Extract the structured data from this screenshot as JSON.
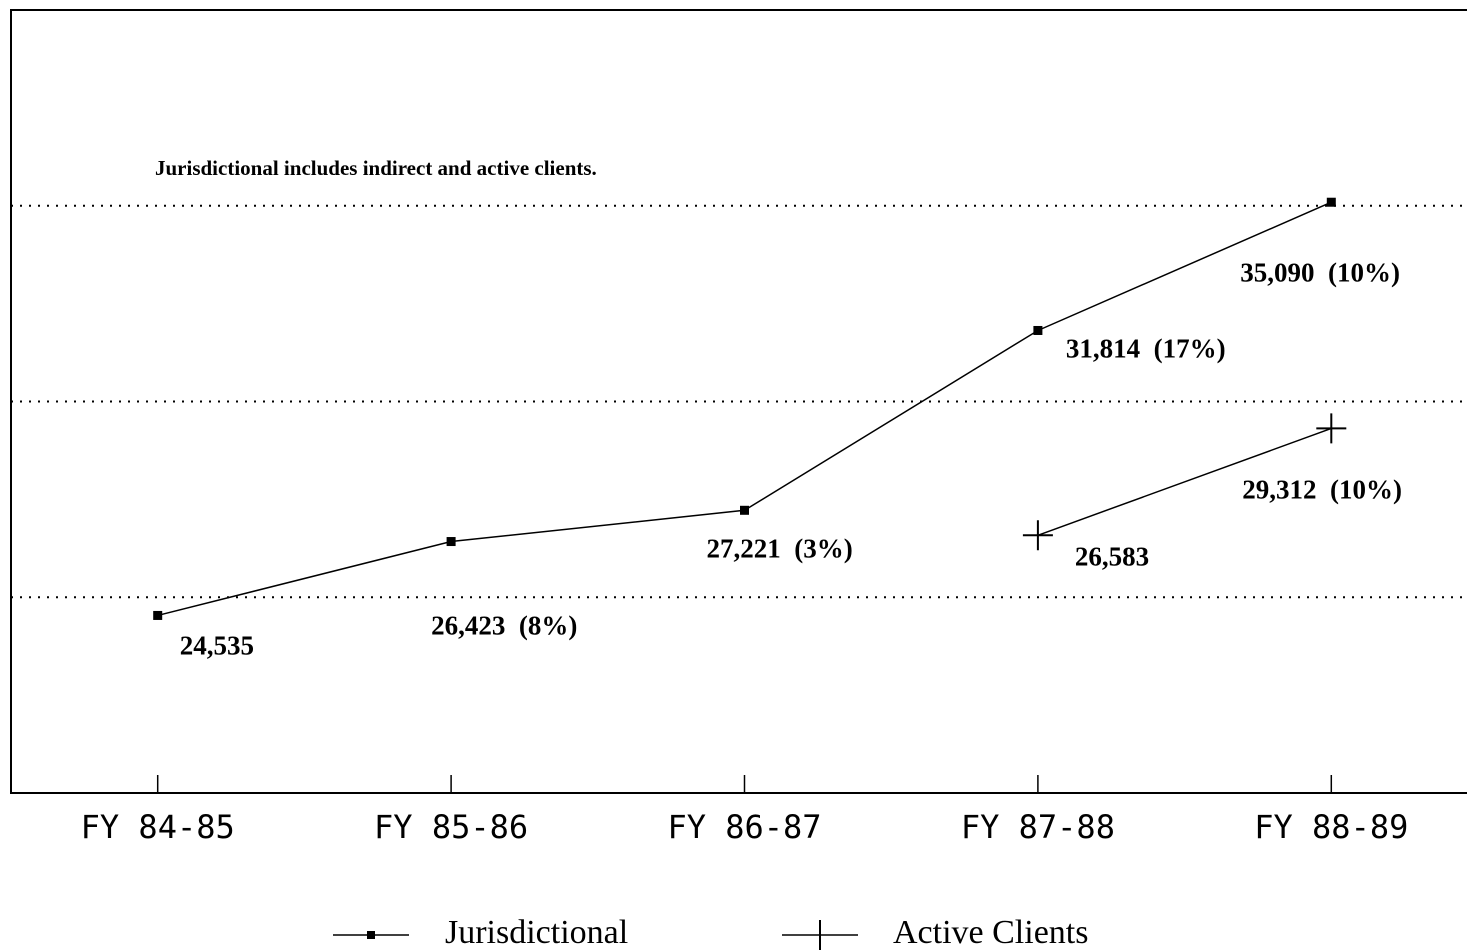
{
  "chart_data": {
    "type": "line",
    "annotation": "Jurisdictional includes indirect and active clients.",
    "categories": [
      "FY 84-85",
      "FY 85-86",
      "FY 86-87",
      "FY 87-88",
      "FY 88-89"
    ],
    "series": [
      {
        "name": "Jurisdictional",
        "color": "#000000",
        "marker": "square",
        "values": [
          24535,
          26423,
          27221,
          31814,
          35090
        ],
        "value_labels": [
          "24,535",
          "26,423  (8%)",
          "27,221  (3%)",
          "31,814  (17%)",
          "35,090  (10%)"
        ]
      },
      {
        "name": "Active Clients",
        "color": "#000000",
        "marker": "plus",
        "values": [
          null,
          null,
          null,
          26583,
          29312
        ],
        "value_labels": [
          null,
          null,
          null,
          "26,583",
          "29,312  (10%)"
        ]
      }
    ],
    "ylim": [
      20000,
      40000
    ],
    "yticks": [
      25000,
      30000,
      35000
    ],
    "grid": true,
    "legend": "bottom"
  }
}
